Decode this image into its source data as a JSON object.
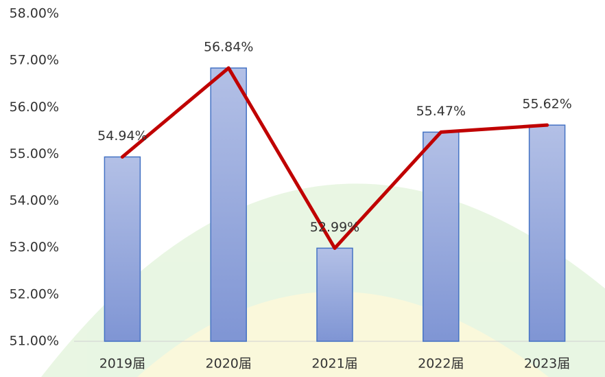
{
  "chart_data": {
    "type": "bar",
    "categories": [
      "2019届",
      "2020届",
      "2021届",
      "2022届",
      "2023届"
    ],
    "series": [
      {
        "type": "bar",
        "color": "#8fa3d8",
        "values": [
          54.94,
          56.84,
          52.99,
          55.47,
          55.62
        ]
      },
      {
        "type": "line",
        "color": "#c00000",
        "values": [
          54.94,
          56.84,
          52.99,
          55.47,
          55.62
        ],
        "value_labels": [
          "54.94%",
          "56.84%",
          "52.99%",
          "55.47%",
          "55.62%"
        ]
      }
    ],
    "ylim": [
      51,
      58
    ],
    "yticks": [
      {
        "value": 51,
        "label": "51.00%"
      },
      {
        "value": 52,
        "label": "52.00%"
      },
      {
        "value": 53,
        "label": "53.00%"
      },
      {
        "value": 54,
        "label": "54.00%"
      },
      {
        "value": 55,
        "label": "55.00%"
      },
      {
        "value": 56,
        "label": "56.00%"
      },
      {
        "value": 57,
        "label": "57.00%"
      },
      {
        "value": 58,
        "label": "58.00%"
      }
    ]
  }
}
